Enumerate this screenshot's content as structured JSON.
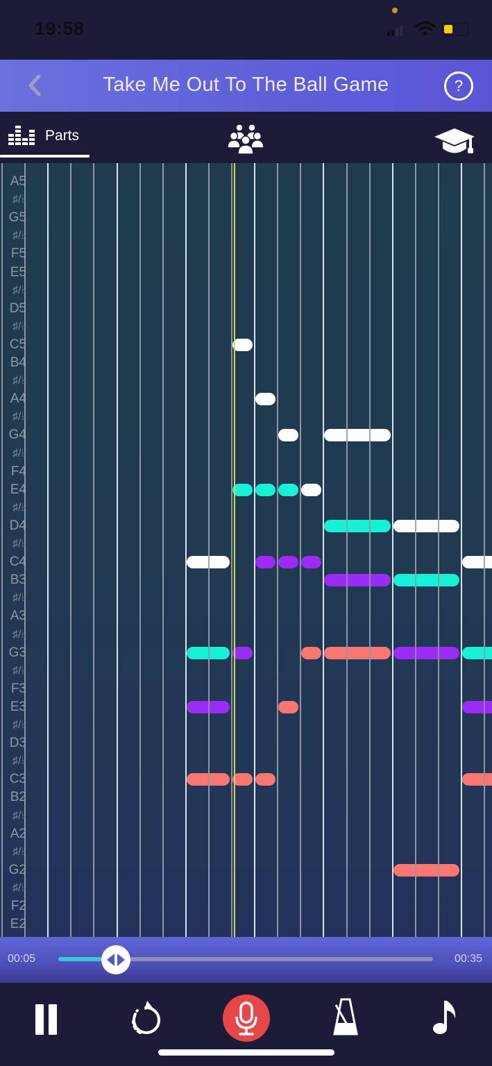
{
  "status_bar": {
    "time": "19:58",
    "battery_color": "#ffd000",
    "privacy_dot_color": "#e08a2a"
  },
  "header": {
    "back_icon": "chevron-left-icon",
    "title": "Take Me Out To The Ball Game",
    "help_label": "?"
  },
  "tabs": [
    {
      "id": "parts",
      "label": "Parts",
      "icon": "equalizer-icon",
      "active": true
    },
    {
      "id": "ensemble",
      "label": "",
      "icon": "group-icon",
      "active": false
    },
    {
      "id": "learn",
      "label": "",
      "icon": "graduation-cap-icon",
      "active": false
    }
  ],
  "piano_roll": {
    "row_labels": [
      "A5",
      "♯/♭",
      "G5",
      "♯/♭",
      "F5",
      "E5",
      "♯/♭",
      "D5",
      "♯/♭",
      "C5",
      "B4",
      "♯/♭",
      "A4",
      "♯/♭",
      "G4",
      "♯/♭",
      "F4",
      "E4",
      "♯/♭",
      "D4",
      "♯/♭",
      "C4",
      "B3",
      "♯/♭",
      "A3",
      "♯/♭",
      "G3",
      "♯/♭",
      "F3",
      "E3",
      "♯/♭",
      "D3",
      "♯/♭",
      "C3",
      "B2",
      "♯/♭",
      "A2",
      "♯/♭",
      "G2",
      "♯/♭",
      "F2",
      "E2"
    ],
    "beats_per_measure": 3,
    "part_colors": {
      "melody": "#ffffff",
      "part2": "#17f2d6",
      "part3": "#9b2bf5",
      "part4": "#fa7670"
    },
    "playhead_color": "#d7d94a",
    "notes": [
      {
        "part": "melody",
        "pitch": "C5",
        "start": 10,
        "length": 1
      },
      {
        "part": "melody",
        "pitch": "A4",
        "start": 11,
        "length": 1
      },
      {
        "part": "melody",
        "pitch": "G4",
        "start": 12,
        "length": 1
      },
      {
        "part": "melody",
        "pitch": "E4",
        "start": 13,
        "length": 1
      },
      {
        "part": "melody",
        "pitch": "G4",
        "start": 14,
        "length": 3
      },
      {
        "part": "melody",
        "pitch": "D4",
        "start": 17,
        "length": 3
      },
      {
        "part": "melody",
        "pitch": "C4",
        "start": 8,
        "length": 2
      },
      {
        "part": "melody",
        "pitch": "C4",
        "start": 20,
        "length": 2
      },
      {
        "part": "part2",
        "pitch": "E4",
        "start": 10,
        "length": 1
      },
      {
        "part": "part2",
        "pitch": "E4",
        "start": 11,
        "length": 1
      },
      {
        "part": "part2",
        "pitch": "E4",
        "start": 12,
        "length": 1
      },
      {
        "part": "part2",
        "pitch": "D4",
        "start": 14,
        "length": 3
      },
      {
        "part": "part2",
        "pitch": "B3",
        "start": 17,
        "length": 3
      },
      {
        "part": "part2",
        "pitch": "G3",
        "start": 8,
        "length": 2
      },
      {
        "part": "part2",
        "pitch": "G3",
        "start": 20,
        "length": 2
      },
      {
        "part": "part3",
        "pitch": "C4",
        "start": 11,
        "length": 1
      },
      {
        "part": "part3",
        "pitch": "C4",
        "start": 12,
        "length": 1
      },
      {
        "part": "part3",
        "pitch": "C4",
        "start": 13,
        "length": 1
      },
      {
        "part": "part3",
        "pitch": "B3",
        "start": 14,
        "length": 3
      },
      {
        "part": "part3",
        "pitch": "G3",
        "start": 10,
        "length": 1
      },
      {
        "part": "part3",
        "pitch": "G3",
        "start": 17,
        "length": 3
      },
      {
        "part": "part3",
        "pitch": "E3",
        "start": 8,
        "length": 2
      },
      {
        "part": "part3",
        "pitch": "E3",
        "start": 20,
        "length": 2
      },
      {
        "part": "part4",
        "pitch": "G3",
        "start": 13,
        "length": 1
      },
      {
        "part": "part4",
        "pitch": "G3",
        "start": 14,
        "length": 3
      },
      {
        "part": "part4",
        "pitch": "E3",
        "start": 12,
        "length": 1
      },
      {
        "part": "part4",
        "pitch": "C3",
        "start": 8,
        "length": 2
      },
      {
        "part": "part4",
        "pitch": "C3",
        "start": 10,
        "length": 1
      },
      {
        "part": "part4",
        "pitch": "C3",
        "start": 11,
        "length": 1
      },
      {
        "part": "part4",
        "pitch": "C3",
        "start": 20,
        "length": 2
      },
      {
        "part": "part4",
        "pitch": "G2",
        "start": 17,
        "length": 3
      }
    ]
  },
  "scrubber": {
    "current_time": "00:05",
    "total_time": "00:35",
    "progress_percent": 15,
    "thumb_icon": "drag-left-right-icon"
  },
  "controls": [
    {
      "id": "pause",
      "icon": "pause-icon"
    },
    {
      "id": "restart",
      "icon": "restart-icon"
    },
    {
      "id": "record",
      "icon": "microphone-icon",
      "color": "#e8474a"
    },
    {
      "id": "metronome",
      "icon": "metronome-icon"
    },
    {
      "id": "note",
      "icon": "music-note-icon"
    }
  ]
}
